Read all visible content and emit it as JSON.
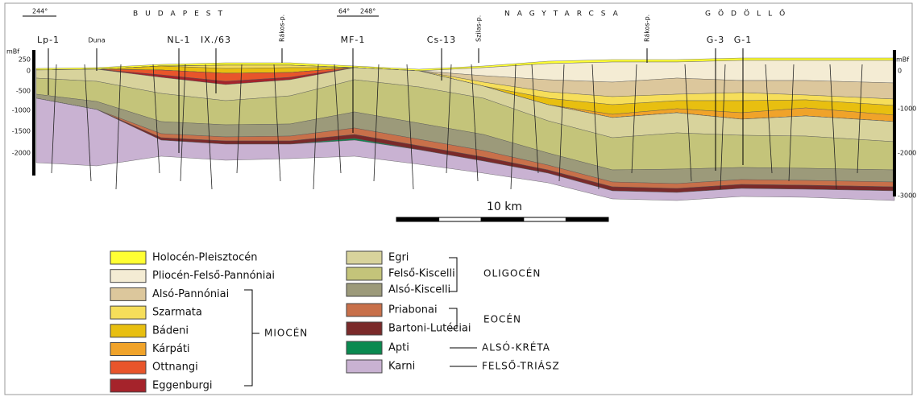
{
  "header": {
    "direction_left": "244°",
    "direction_mid": [
      "64°",
      "248°"
    ],
    "places": [
      "BUDAPEST",
      "NAGYTARCSA",
      "GÖDÖLLŐ"
    ]
  },
  "wells": [
    "Lp-1",
    "Duna",
    "NL-1",
    "IX./63",
    "Rákos-p.",
    "MF-1",
    "Cs-13",
    "Szilas-p.",
    "Rákos-p.",
    "G-3",
    "G-1"
  ],
  "left_axis": {
    "unit": "mBf",
    "labels": [
      "250",
      "0",
      "-500",
      "-1000",
      "-1500",
      "-2000"
    ]
  },
  "right_axis": {
    "unit": "mBf",
    "labels": [
      "0",
      "-1000",
      "-2000",
      "-3000"
    ]
  },
  "scale": "10 km",
  "legend": {
    "units": [
      {
        "label": "Holocén-Pleisztocén",
        "color": "#ffff33"
      },
      {
        "label": "Pliocén-Felső-Pannóniai",
        "color": "#f4ecd4"
      },
      {
        "label": "Alsó-Pannóniai",
        "color": "#dcc79c"
      },
      {
        "label": "Szarmata",
        "color": "#f6de5a"
      },
      {
        "label": "Bádeni",
        "color": "#e8bf10"
      },
      {
        "label": "Kárpáti",
        "color": "#f0a32a"
      },
      {
        "label": "Ottnangi",
        "color": "#e8552b"
      },
      {
        "label": "Eggenburgi",
        "color": "#a5232b"
      },
      {
        "label": "Egri",
        "color": "#d8d39c"
      },
      {
        "label": "Felső-Kiscelli",
        "color": "#c4c47a"
      },
      {
        "label": "Alsó-Kiscelli",
        "color": "#9c9a7a"
      },
      {
        "label": "Priabonai",
        "color": "#c8704a"
      },
      {
        "label": "Bartoni-Lutéciai",
        "color": "#7a2a2a"
      },
      {
        "label": "Apti",
        "color": "#0a8a50"
      },
      {
        "label": "Karni",
        "color": "#c9b2d2"
      }
    ],
    "groups": [
      "MIOCÉN",
      "OLIGOCÉN",
      "EOCÉN",
      "ALSÓ-KRÉTA",
      "FELSŐ-TRIÁSZ"
    ]
  }
}
